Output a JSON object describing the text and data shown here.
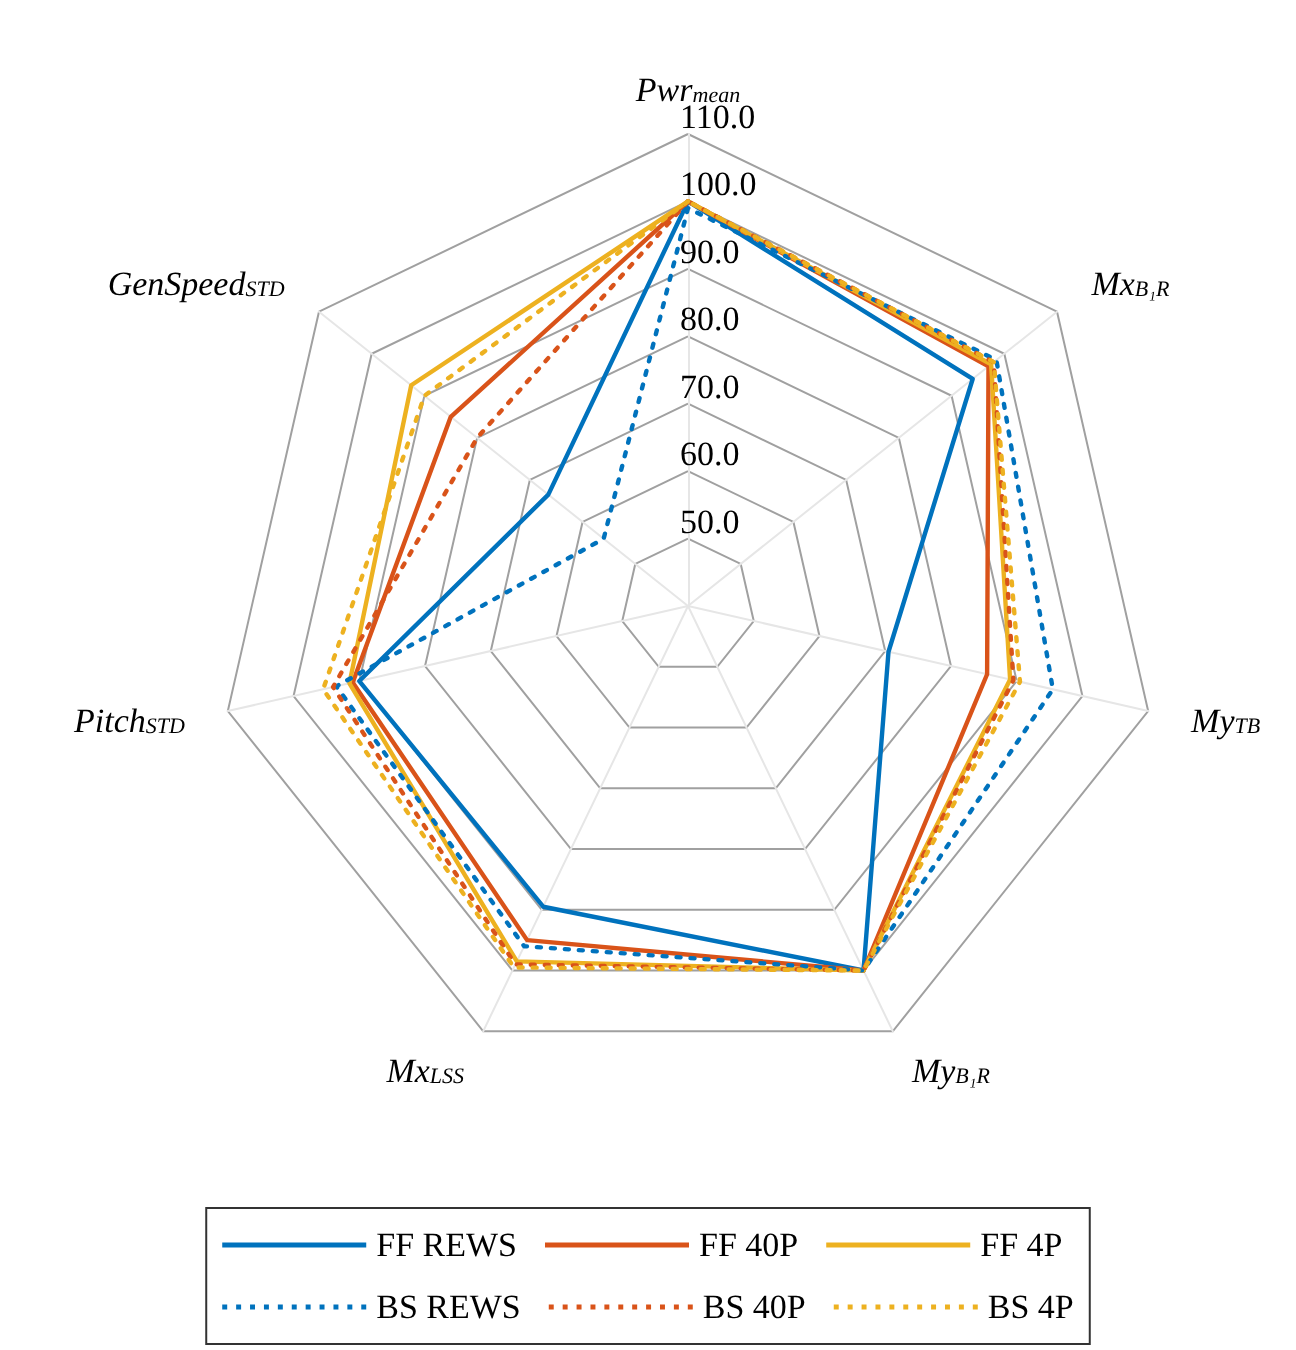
{
  "chart_data": {
    "type": "radar",
    "categories": [
      "Pwr$_{mean}$",
      "Mx$_{B₁R}$",
      "My$_{TB}$",
      "My$_{B₁R}$",
      "Mx$_{LSS}$",
      "Pitch$_{STD}$",
      "GenSpeed$_{STD}$"
    ],
    "series": [
      {
        "name": "FF REWS",
        "color": "#0072bd",
        "line_style": "solid",
        "values": [
          100,
          94,
          70.5,
          100,
          89.5,
          90,
          66.5
        ]
      },
      {
        "name": "FF 40P",
        "color": "#d95319",
        "line_style": "solid",
        "values": [
          100,
          97,
          85.5,
          100,
          95,
          91,
          85
        ]
      },
      {
        "name": "FF 4P",
        "color": "#edb120",
        "line_style": "solid",
        "values": [
          100,
          97.5,
          89,
          100,
          98.5,
          91.5,
          92.5
        ]
      },
      {
        "name": "BS REWS",
        "color": "#0072bd",
        "line_style": "dotted",
        "values": [
          99,
          98.5,
          95.5,
          100,
          96,
          93.5,
          56
        ]
      },
      {
        "name": "BS 40P",
        "color": "#d95319",
        "line_style": "dotted",
        "values": [
          100,
          98,
          89.5,
          100,
          99,
          94,
          80
        ]
      },
      {
        "name": "BS 4P",
        "color": "#edb120",
        "line_style": "dotted",
        "values": [
          100,
          98,
          90.5,
          100,
          99.5,
          95.5,
          90
        ]
      }
    ],
    "ylim": [
      40,
      110
    ],
    "yticks": [
      {
        "value": 50,
        "label": "50.0"
      },
      {
        "value": 60,
        "label": "60.0"
      },
      {
        "value": 70,
        "label": "70.0"
      },
      {
        "value": 80,
        "label": "80.0"
      },
      {
        "value": 90,
        "label": "90.0"
      },
      {
        "value": 100,
        "label": "100.0"
      },
      {
        "value": 110,
        "label": "110.0"
      }
    ],
    "grid": true,
    "legend": "bottom",
    "marker": "none"
  }
}
